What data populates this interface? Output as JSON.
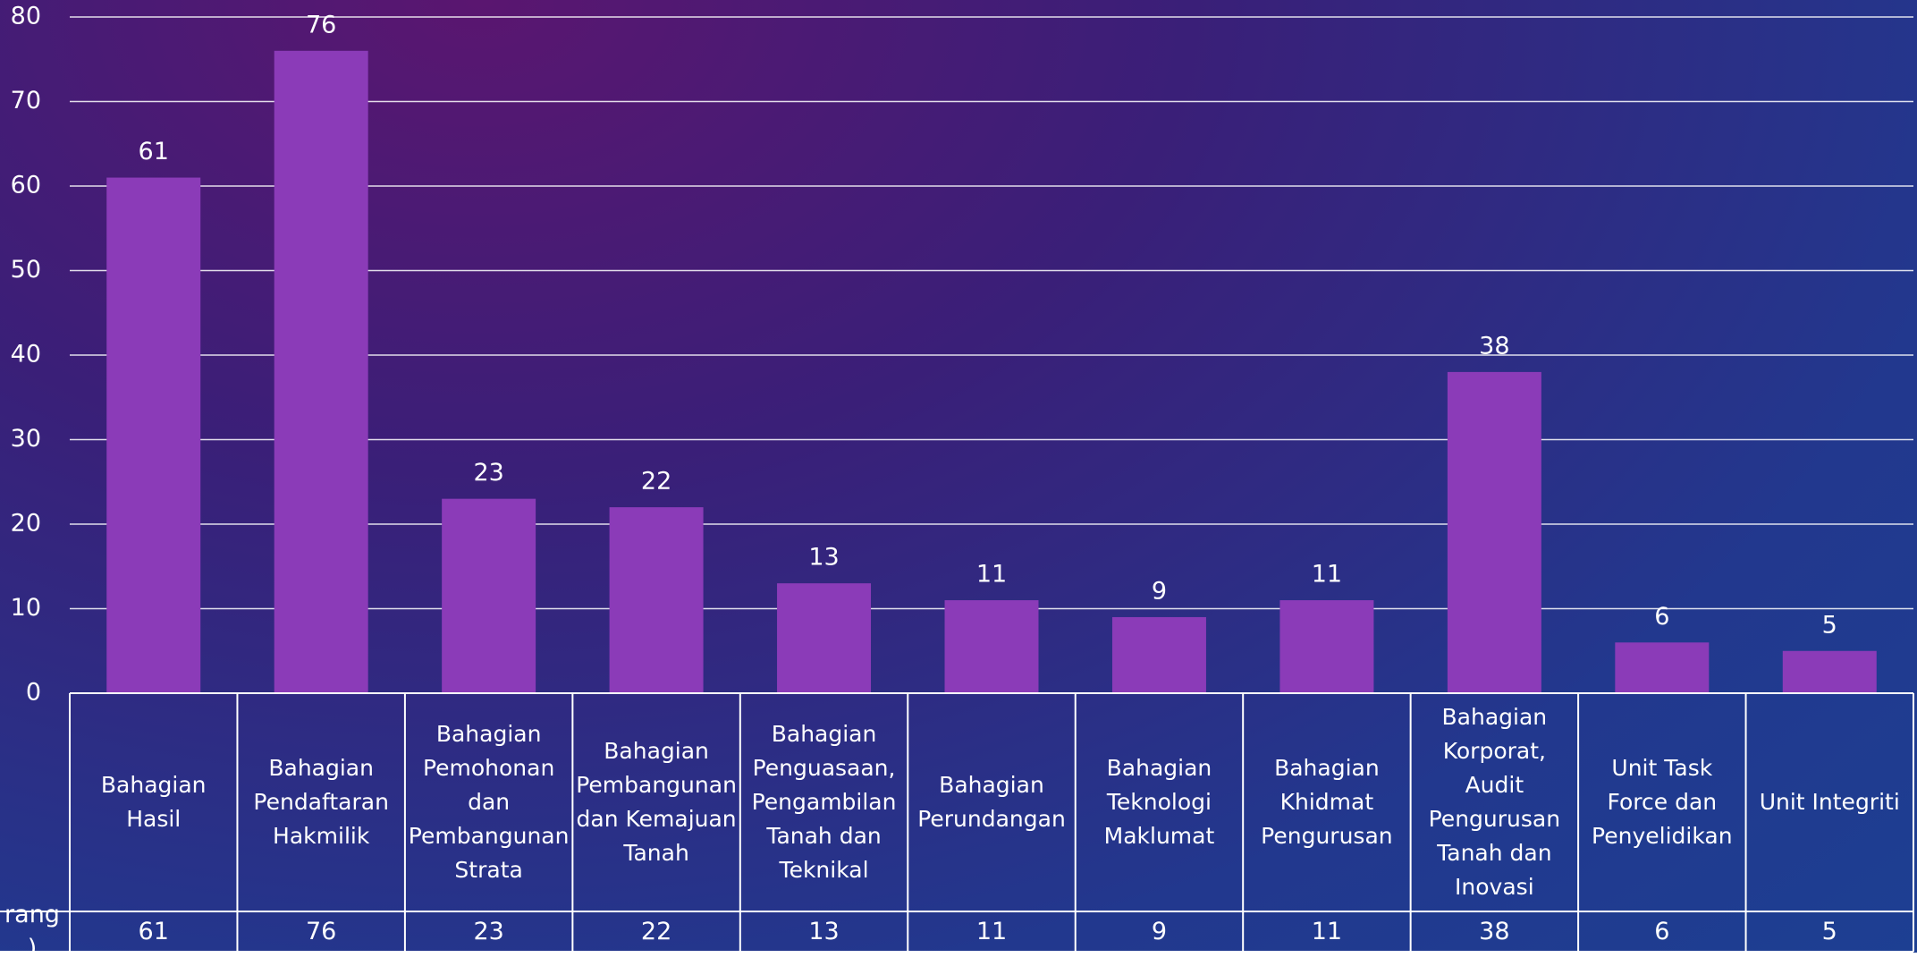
{
  "chart_data": {
    "type": "bar",
    "categories": [
      "Bahagian Hasil",
      "Bahagian Pendaftaran Hakmilik",
      "Bahagian Pemohonan dan Pembangunan Strata",
      "Bahagian Pembangunan dan Kemajuan Tanah",
      "Bahagian Penguasaan, Pengambilan Tanah dan Teknikal",
      "Bahagian Perundangan",
      "Bahagian Teknologi Maklumat",
      "Bahagian Khidmat Pengurusan",
      "Bahagian Korporat, Audit Pengurusan Tanah dan Inovasi",
      "Unit Task Force dan Penyelidikan",
      "Unit Integriti"
    ],
    "series": [
      {
        "name": "rang)",
        "color": "#8b3bb8",
        "values": [
          61,
          76,
          23,
          22,
          13,
          11,
          9,
          11,
          38,
          6,
          5
        ]
      }
    ],
    "ylim": [
      0,
      80
    ],
    "yticks": [
      0,
      10,
      20,
      30,
      40,
      50,
      60,
      70,
      80
    ],
    "grid": true
  }
}
